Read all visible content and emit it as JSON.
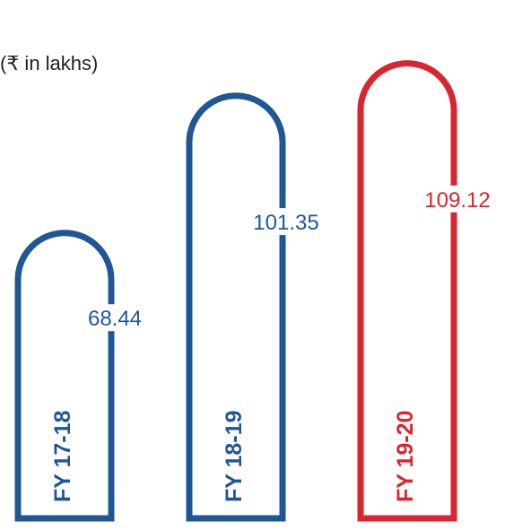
{
  "chart_data": {
    "type": "bar",
    "unit_label": "(₹ in lakhs)",
    "categories": [
      "FY 17-18",
      "FY 18-19",
      "FY 19-20"
    ],
    "values": [
      68.44,
      101.35,
      109.12
    ],
    "value_labels": [
      "68.44",
      "101.35",
      "109.12"
    ],
    "colors": [
      "#1f5796",
      "#1f5796",
      "#d9252f"
    ],
    "ylim": [
      0,
      120
    ],
    "grid": false,
    "legend": "none"
  }
}
